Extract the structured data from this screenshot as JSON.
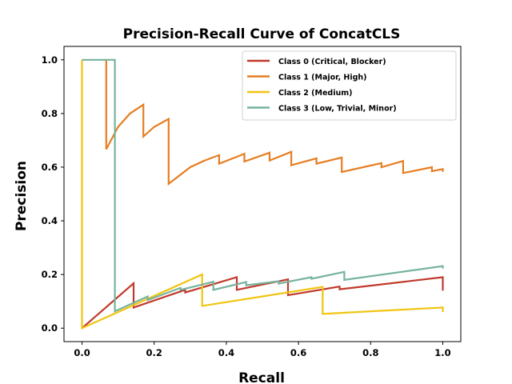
{
  "chart_data": {
    "type": "line",
    "title": "Precision-Recall Curve of ConcatCLS",
    "xlabel": "Recall",
    "ylabel": "Precision",
    "xlim": [
      -0.05,
      1.05
    ],
    "ylim": [
      -0.05,
      1.05
    ],
    "xticks": [
      "0.0",
      "0.2",
      "0.4",
      "0.6",
      "0.8",
      "1.0"
    ],
    "yticks": [
      "0.0",
      "0.2",
      "0.4",
      "0.6",
      "0.8",
      "1.0"
    ],
    "grid": false,
    "legend_position": "top-right",
    "series": [
      {
        "name": "Class 0 (Critical, Blocker)",
        "color": "#c0392b",
        "points": [
          [
            0.0,
            0.0
          ],
          [
            0.143,
            0.167
          ],
          [
            0.143,
            0.077
          ],
          [
            0.286,
            0.143
          ],
          [
            0.286,
            0.133
          ],
          [
            0.429,
            0.19
          ],
          [
            0.429,
            0.143
          ],
          [
            0.571,
            0.182
          ],
          [
            0.571,
            0.123
          ],
          [
            0.714,
            0.155
          ],
          [
            0.714,
            0.145
          ],
          [
            1.0,
            0.19
          ],
          [
            1.0,
            0.14
          ]
        ]
      },
      {
        "name": "Class 1 (Major, High)",
        "color": "#e67e22",
        "points": [
          [
            0.067,
            1.0
          ],
          [
            0.067,
            0.667
          ],
          [
            0.1,
            0.75
          ],
          [
            0.133,
            0.8
          ],
          [
            0.17,
            0.833
          ],
          [
            0.17,
            0.714
          ],
          [
            0.2,
            0.75
          ],
          [
            0.24,
            0.78
          ],
          [
            0.24,
            0.538
          ],
          [
            0.3,
            0.6
          ],
          [
            0.34,
            0.625
          ],
          [
            0.38,
            0.645
          ],
          [
            0.38,
            0.613
          ],
          [
            0.45,
            0.65
          ],
          [
            0.45,
            0.621
          ],
          [
            0.52,
            0.654
          ],
          [
            0.52,
            0.625
          ],
          [
            0.58,
            0.657
          ],
          [
            0.58,
            0.607
          ],
          [
            0.65,
            0.633
          ],
          [
            0.65,
            0.613
          ],
          [
            0.72,
            0.636
          ],
          [
            0.72,
            0.582
          ],
          [
            0.83,
            0.615
          ],
          [
            0.83,
            0.6
          ],
          [
            0.89,
            0.623
          ],
          [
            0.89,
            0.578
          ],
          [
            0.97,
            0.6
          ],
          [
            0.97,
            0.585
          ],
          [
            1.0,
            0.593
          ],
          [
            1.0,
            0.583
          ]
        ]
      },
      {
        "name": "Class 2 (Medium)",
        "color": "#f1c40f",
        "points": [
          [
            0.0,
            1.0
          ],
          [
            0.0,
            0.0
          ],
          [
            0.333,
            0.2
          ],
          [
            0.333,
            0.083
          ],
          [
            0.667,
            0.154
          ],
          [
            0.667,
            0.053
          ],
          [
            1.0,
            0.077
          ],
          [
            1.0,
            0.06
          ]
        ]
      },
      {
        "name": "Class 3 (Low, Trivial, Minor)",
        "color": "#76b39d",
        "points": [
          [
            0.0,
            1.0
          ],
          [
            0.091,
            1.0
          ],
          [
            0.091,
            0.063
          ],
          [
            0.182,
            0.118
          ],
          [
            0.182,
            0.105
          ],
          [
            0.273,
            0.15
          ],
          [
            0.273,
            0.143
          ],
          [
            0.364,
            0.173
          ],
          [
            0.364,
            0.143
          ],
          [
            0.455,
            0.172
          ],
          [
            0.455,
            0.16
          ],
          [
            0.545,
            0.175
          ],
          [
            0.545,
            0.166
          ],
          [
            0.636,
            0.19
          ],
          [
            0.636,
            0.184
          ],
          [
            0.727,
            0.21
          ],
          [
            0.727,
            0.18
          ],
          [
            1.0,
            0.231
          ],
          [
            1.0,
            0.222
          ]
        ]
      }
    ]
  }
}
